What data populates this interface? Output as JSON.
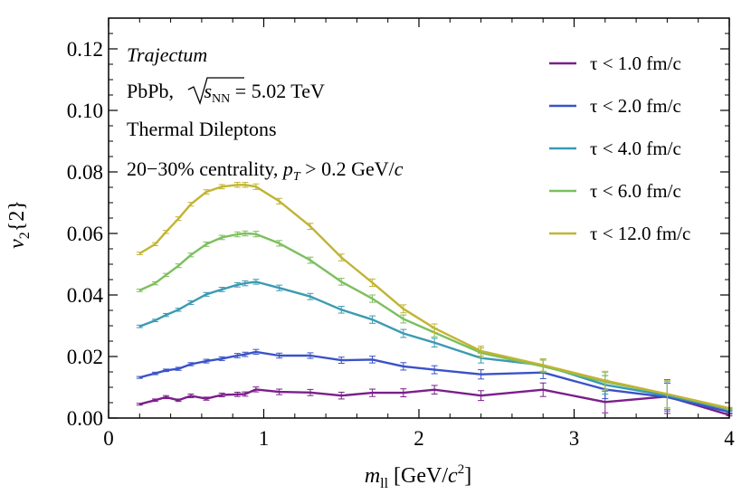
{
  "chart_data": {
    "type": "line",
    "title": "Trajectum",
    "annotations": [
      "Trajectum",
      "PbPb, √s_NN = 5.02 TeV",
      "Thermal Dileptons",
      "20–30% centrality, p_T > 0.2 GeV/c"
    ],
    "xlabel": "m_ll [GeV/c²]",
    "ylabel": "v₂{2}",
    "xlim": [
      0,
      4
    ],
    "ylim": [
      0,
      0.13
    ],
    "x_ticks": [
      0,
      1,
      2,
      3,
      4
    ],
    "x_tick_labels": [
      "0",
      "1",
      "2",
      "3",
      "4"
    ],
    "y_ticks": [
      0,
      0.02,
      0.04,
      0.06,
      0.08,
      0.1,
      0.12
    ],
    "y_tick_labels": [
      "0.00",
      "0.02",
      "0.04",
      "0.06",
      "0.08",
      "0.10",
      "0.12"
    ],
    "grid": false,
    "legend_position": "top-right",
    "x": [
      0.2,
      0.3,
      0.37,
      0.45,
      0.53,
      0.63,
      0.73,
      0.83,
      0.88,
      0.95,
      1.1,
      1.3,
      1.5,
      1.7,
      1.9,
      2.1,
      2.4,
      2.8,
      3.2,
      3.6,
      4.0
    ],
    "series": [
      {
        "name": "τ < 1.0 fm/c",
        "color": "#7a1f8a",
        "values": [
          0.0045,
          0.0058,
          0.0068,
          0.0058,
          0.0072,
          0.0063,
          0.0075,
          0.0077,
          0.0078,
          0.0093,
          0.0085,
          0.0083,
          0.0073,
          0.0082,
          0.0082,
          0.0092,
          0.0073,
          0.0092,
          0.0052,
          0.007,
          0.001
        ],
        "errors": [
          0.0003,
          0.0004,
          0.0005,
          0.0004,
          0.0006,
          0.0005,
          0.0006,
          0.0007,
          0.0007,
          0.0008,
          0.0009,
          0.001,
          0.0011,
          0.0012,
          0.0013,
          0.0014,
          0.0016,
          0.0022,
          0.0035,
          0.0055,
          0.0003
        ]
      },
      {
        "name": "τ < 2.0 fm/c",
        "color": "#3a52c8",
        "values": [
          0.0132,
          0.0145,
          0.0155,
          0.016,
          0.0175,
          0.0185,
          0.0193,
          0.0203,
          0.0207,
          0.0215,
          0.0203,
          0.0203,
          0.0188,
          0.019,
          0.0168,
          0.0157,
          0.0142,
          0.0148,
          0.0093,
          0.0068,
          0.002
        ],
        "errors": [
          0.0003,
          0.0004,
          0.0004,
          0.0005,
          0.0005,
          0.0006,
          0.0006,
          0.0007,
          0.0007,
          0.0008,
          0.0008,
          0.0009,
          0.001,
          0.0011,
          0.0012,
          0.0013,
          0.0015,
          0.002,
          0.003,
          0.0045,
          0.0003
        ]
      },
      {
        "name": "τ < 4.0 fm/c",
        "color": "#3b9ab2",
        "values": [
          0.0298,
          0.0317,
          0.0335,
          0.0352,
          0.0375,
          0.0402,
          0.0418,
          0.0433,
          0.0438,
          0.0443,
          0.0423,
          0.0395,
          0.0352,
          0.032,
          0.0275,
          0.0245,
          0.0195,
          0.0172,
          0.0108,
          0.0073,
          0.0028
        ],
        "errors": [
          0.0004,
          0.0004,
          0.0005,
          0.0005,
          0.0006,
          0.0006,
          0.0007,
          0.0007,
          0.0008,
          0.0008,
          0.0009,
          0.001,
          0.0011,
          0.0012,
          0.0013,
          0.0014,
          0.0016,
          0.002,
          0.003,
          0.0045,
          0.0003
        ]
      },
      {
        "name": "τ < 6.0 fm/c",
        "color": "#7dbf5e",
        "values": [
          0.0415,
          0.0438,
          0.0465,
          0.0495,
          0.053,
          0.0565,
          0.0587,
          0.0597,
          0.06,
          0.0598,
          0.0568,
          0.0513,
          0.0443,
          0.0388,
          0.0322,
          0.0278,
          0.0212,
          0.0168,
          0.0118,
          0.0078,
          0.003
        ],
        "errors": [
          0.0004,
          0.0005,
          0.0005,
          0.0006,
          0.0006,
          0.0007,
          0.0007,
          0.0008,
          0.0008,
          0.0009,
          0.0009,
          0.001,
          0.0011,
          0.0012,
          0.0013,
          0.0014,
          0.0016,
          0.002,
          0.003,
          0.0045,
          0.0003
        ]
      },
      {
        "name": "τ < 12.0 fm/c",
        "color": "#c2b432",
        "values": [
          0.0535,
          0.0565,
          0.0605,
          0.0648,
          0.0695,
          0.0735,
          0.0752,
          0.0758,
          0.0758,
          0.0752,
          0.0705,
          0.0623,
          0.0522,
          0.044,
          0.0355,
          0.0292,
          0.0218,
          0.0172,
          0.0122,
          0.0078,
          0.0032
        ],
        "errors": [
          0.0004,
          0.0005,
          0.0005,
          0.0006,
          0.0006,
          0.0007,
          0.0007,
          0.0008,
          0.0008,
          0.0009,
          0.0009,
          0.001,
          0.0011,
          0.0012,
          0.0013,
          0.0014,
          0.0016,
          0.002,
          0.003,
          0.0045,
          0.0003
        ]
      }
    ]
  }
}
